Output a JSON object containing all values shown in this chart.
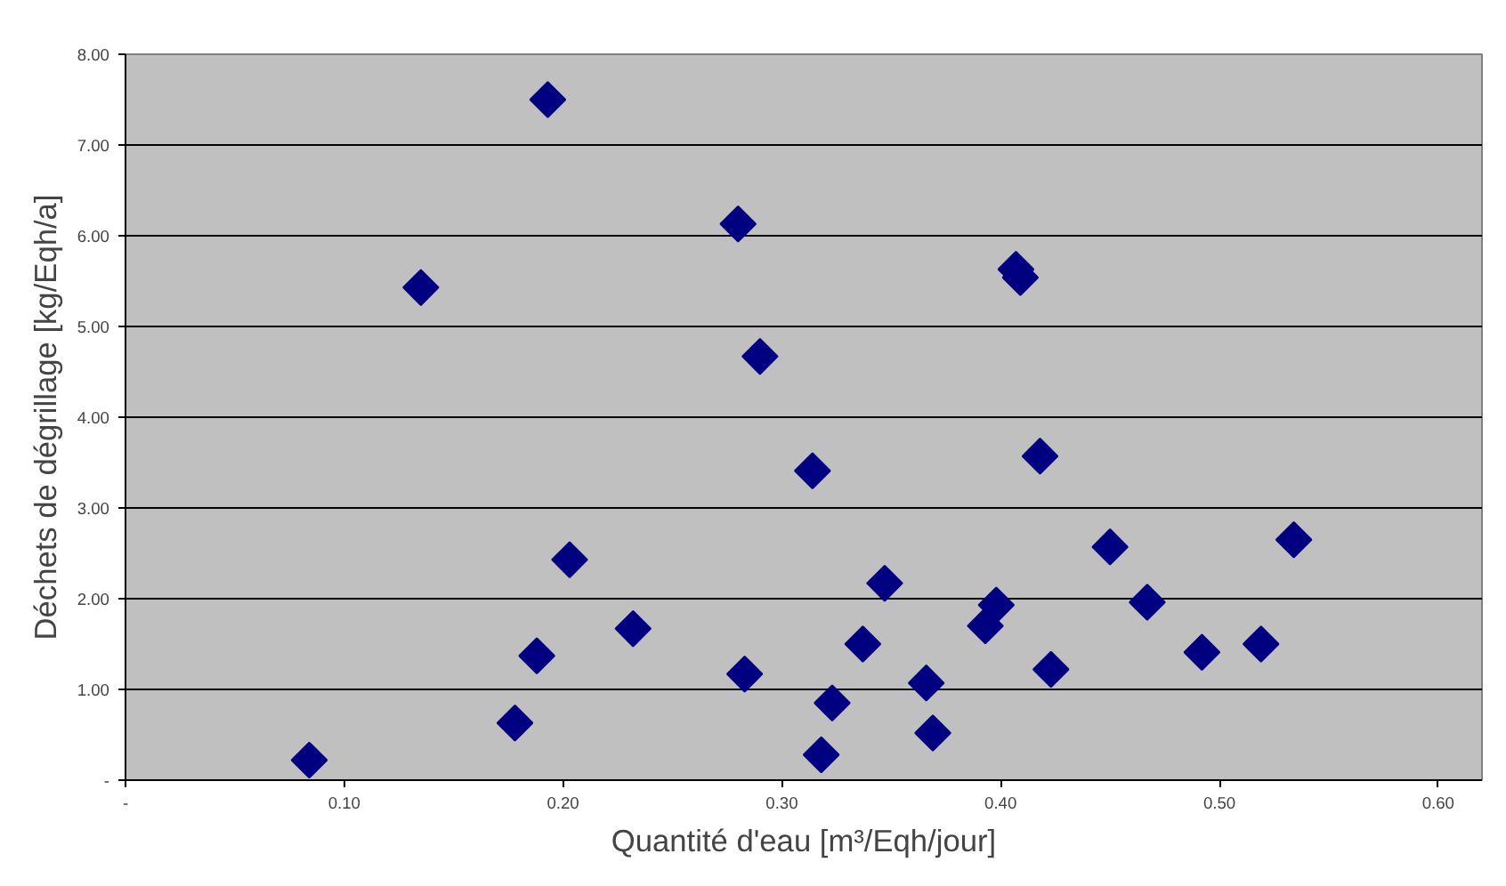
{
  "chart_data": {
    "type": "scatter",
    "xlabel": "Quantité d'eau [m³/Eqh/jour]",
    "ylabel": "Déchets de dégrillage [kg/Eqh/a]",
    "x": [
      0.084,
      0.135,
      0.193,
      0.178,
      0.188,
      0.203,
      0.232,
      0.28,
      0.283,
      0.29,
      0.314,
      0.318,
      0.323,
      0.337,
      0.347,
      0.366,
      0.369,
      0.393,
      0.398,
      0.407,
      0.409,
      0.418,
      0.423,
      0.45,
      0.467,
      0.492,
      0.519,
      0.534
    ],
    "series": [
      {
        "color": "#000080",
        "values": [
          0.22,
          5.43,
          7.5,
          0.63,
          1.37,
          2.43,
          1.67,
          6.13,
          1.17,
          4.67,
          3.41,
          0.28,
          0.85,
          1.5,
          2.17,
          1.07,
          0.52,
          1.7,
          1.93,
          5.63,
          5.54,
          3.57,
          1.22,
          2.57,
          1.96,
          1.41,
          1.5,
          2.65
        ]
      }
    ],
    "xlim": [
      0,
      0.62
    ],
    "ylim": [
      0,
      8
    ],
    "xticks": [
      {
        "value": 0,
        "label": "-"
      },
      {
        "value": 0.1,
        "label": "0.10"
      },
      {
        "value": 0.2,
        "label": "0.20"
      },
      {
        "value": 0.3,
        "label": "0.30"
      },
      {
        "value": 0.4,
        "label": "0.40"
      },
      {
        "value": 0.5,
        "label": "0.50"
      },
      {
        "value": 0.6,
        "label": "0.60"
      }
    ],
    "yticks": [
      {
        "value": 0,
        "label": "-"
      },
      {
        "value": 1,
        "label": "1.00"
      },
      {
        "value": 2,
        "label": "2.00"
      },
      {
        "value": 3,
        "label": "3.00"
      },
      {
        "value": 4,
        "label": "4.00"
      },
      {
        "value": 5,
        "label": "5.00"
      },
      {
        "value": 6,
        "label": "6.00"
      },
      {
        "value": 7,
        "label": "7.00"
      },
      {
        "value": 8,
        "label": "8.00"
      }
    ],
    "grid": "y",
    "marker": "diamond"
  }
}
